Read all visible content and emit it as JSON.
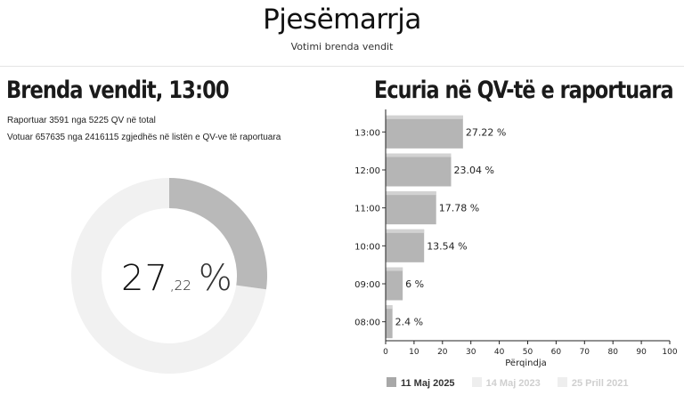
{
  "header": {
    "title": "Pjesëmarrja",
    "subtitle": "Votimi brenda vendit"
  },
  "left_panel": {
    "heading": "Brenda vendit, 13:00",
    "reported_line": "Raportuar 3591 nga 5225 QV në total",
    "voted_line": "Votuar 657635 nga 2416115 zgjedhës në listën e QV-ve të raportuara",
    "gauge": {
      "percent": 27.22,
      "integer_text": "27",
      "decimal_text": ",22",
      "unit": "%",
      "fill_color": "#b9b9b9",
      "track_color": "#f1f1f1"
    }
  },
  "right_panel": {
    "heading": "Ecuria në QV-të e raportuara"
  },
  "chart_data": {
    "type": "bar",
    "orientation": "horizontal",
    "categories": [
      "13:00",
      "12:00",
      "11:00",
      "10:00",
      "09:00",
      "08:00"
    ],
    "series": [
      {
        "name": "11 Maj 2025",
        "values": [
          27.22,
          23.04,
          17.78,
          13.54,
          6,
          2.4
        ],
        "labels": [
          "27.22 %",
          "23.04 %",
          "17.78 %",
          "13.54 %",
          "6 %",
          "2.4 %"
        ]
      }
    ],
    "xlabel": "Përqindja",
    "xlim": [
      0,
      100
    ],
    "xticks": [
      0,
      10,
      20,
      30,
      40,
      50,
      60,
      70,
      80,
      90,
      100
    ],
    "grid": false,
    "bar_color": "#b5b5b5",
    "legend": {
      "position": "bottom",
      "items": [
        {
          "label": "11 Maj 2025",
          "color": "#a8a8a8",
          "text_color": "#333333"
        },
        {
          "label": "14 Maj 2023",
          "color": "#eeeeee",
          "text_color": "#cfcfcf"
        },
        {
          "label": "25 Prill 2021",
          "color": "#eeeeee",
          "text_color": "#cfcfcf"
        }
      ]
    }
  }
}
